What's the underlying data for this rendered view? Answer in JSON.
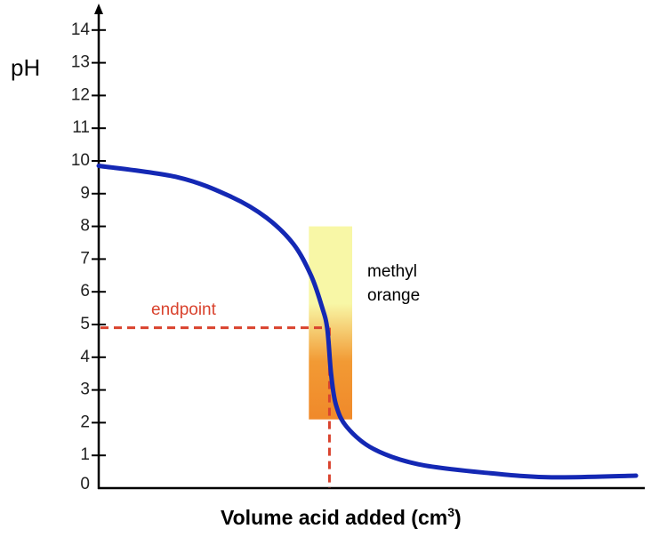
{
  "chart_data": {
    "type": "line",
    "title": "",
    "ylabel": "pH",
    "xlabel": "Volume acid added (cm",
    "xlabel_superscript": "3",
    "xlabel_suffix": ")",
    "ylim": [
      0,
      14.5
    ],
    "xlim": [
      0,
      100
    ],
    "yticks": [
      "0",
      "1",
      "2",
      "3",
      "4",
      "5",
      "6",
      "7",
      "8",
      "9",
      "10",
      "11",
      "12",
      "13",
      "14"
    ],
    "grid": false,
    "series": [
      {
        "name": "titration curve",
        "color": "#1428b4",
        "x": [
          0,
          14.6,
          24.5,
          31,
          36,
          39.2,
          41.2,
          42.2,
          42.9,
          43.8,
          45.8,
          50.7,
          59,
          72,
          83.6,
          99.2
        ],
        "y": [
          9.85,
          9.5,
          8.9,
          8.26,
          7.45,
          6.5,
          5.55,
          4.87,
          3.5,
          2.55,
          1.87,
          1.2,
          0.73,
          0.46,
          0.33,
          0.38
        ]
      }
    ],
    "indicator_band": {
      "label_line1": "methyl",
      "label_line2": "orange",
      "x_range": [
        38.8,
        46.8
      ],
      "ph_range": [
        2.1,
        8.0
      ],
      "color_low": "#f0892a",
      "color_high": "#f8f7a6"
    },
    "endpoint": {
      "label": "endpoint",
      "x": 42.6,
      "ph": 4.9,
      "color": "#d9432e"
    }
  }
}
